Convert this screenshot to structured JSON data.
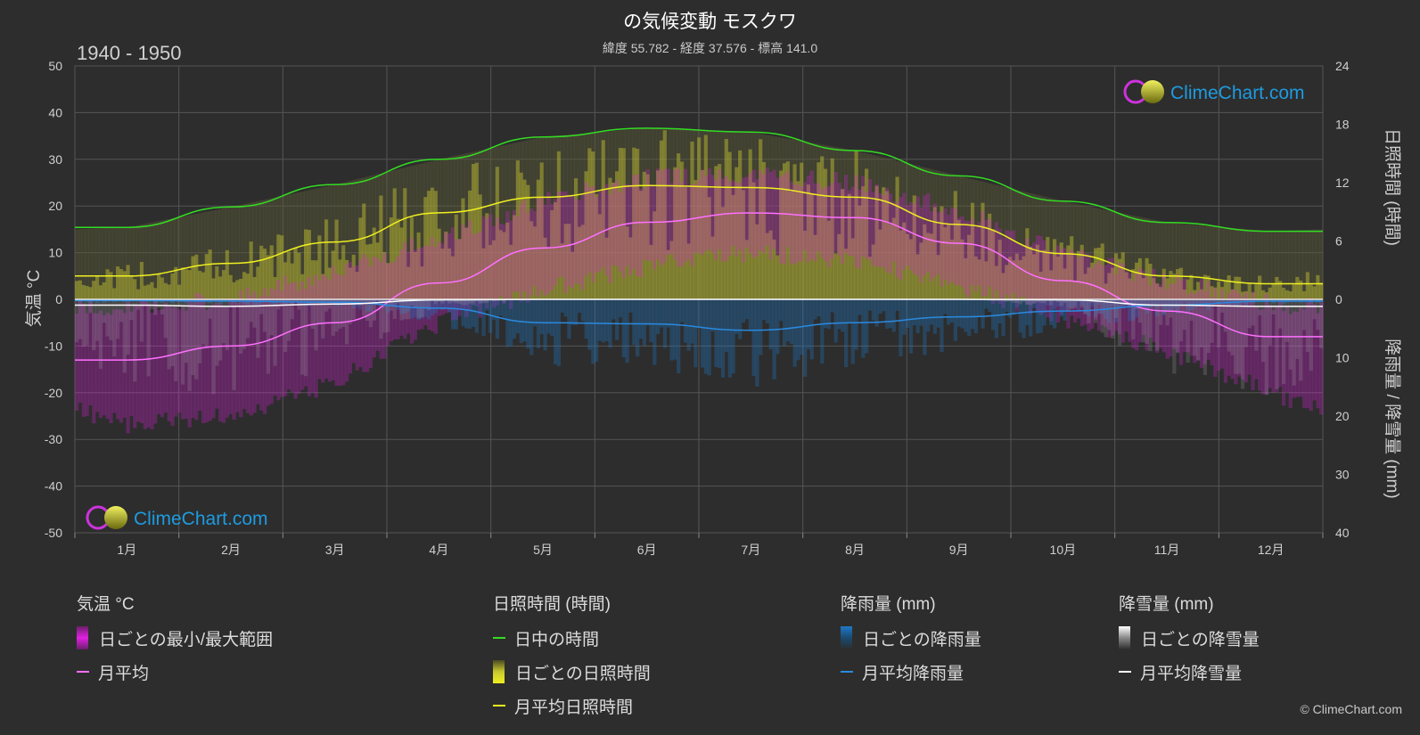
{
  "header": {
    "title": "の気候変動 モスクワ",
    "subtitle": "緯度 55.782 - 経度 37.576 - 標高 141.0",
    "period": "1940 - 1950",
    "copyright": "© ClimeChart.com",
    "watermark": "ClimeChart.com"
  },
  "axes": {
    "left_label": "気温 °C",
    "right_top_label": "日照時間 (時間)",
    "right_bottom_label": "降雨量 / 降雪量 (mm)"
  },
  "legend": {
    "temperature": {
      "heading": "気温 °C",
      "range": "日ごとの最小/最大範囲",
      "mean": "月平均"
    },
    "sunshine": {
      "heading": "日照時間 (時間)",
      "daylight": "日中の時間",
      "daily": "日ごとの日照時間",
      "mean": "月平均日照時間"
    },
    "rain": {
      "heading": "降雨量 (mm)",
      "daily": "日ごとの降雨量",
      "mean": "月平均降雨量"
    },
    "snow": {
      "heading": "降雪量 (mm)",
      "daily": "日ごとの降雪量",
      "mean": "月平均降雪量"
    }
  },
  "colors": {
    "background": "#2d2d2d",
    "temp_range": "#e020e0",
    "temp_mean": "#ff70ff",
    "daylight": "#33dd22",
    "sunshine": "#c8c830",
    "sunshine_mean": "#f0f020",
    "rain": "#1e78c8",
    "rain_mean": "#2a8ae0",
    "snow": "#aaaaaa",
    "snow_mean": "#ffffff",
    "logo_text": "#1e9be0"
  },
  "chart_data": {
    "type": "line",
    "categories": [
      "1月",
      "2月",
      "3月",
      "4月",
      "5月",
      "6月",
      "7月",
      "8月",
      "9月",
      "10月",
      "11月",
      "12月"
    ],
    "y_left": {
      "ticks": [
        50,
        40,
        30,
        20,
        10,
        0,
        -10,
        -20,
        -30,
        -40,
        -50
      ],
      "range": [
        -50,
        50
      ]
    },
    "y_right_top": {
      "ticks": [
        24,
        18,
        12,
        6,
        0
      ],
      "range": [
        0,
        24
      ]
    },
    "y_right_bottom": {
      "ticks": [
        10,
        20,
        30,
        40
      ],
      "range": [
        0,
        40
      ]
    },
    "grid": true,
    "series": [
      {
        "name": "日中の時間",
        "axis": "right_top",
        "values": [
          7.4,
          9.5,
          11.8,
          14.4,
          16.7,
          17.6,
          17.2,
          15.3,
          12.7,
          10.1,
          7.9,
          7.0
        ]
      },
      {
        "name": "月平均日照時間",
        "axis": "right_top",
        "values": [
          2.4,
          3.7,
          5.9,
          8.9,
          10.5,
          11.7,
          11.5,
          10.5,
          7.7,
          4.7,
          2.4,
          1.6
        ]
      },
      {
        "name": "月平均",
        "axis": "left",
        "values": [
          -13.0,
          -10.0,
          -5.0,
          3.5,
          11.0,
          16.5,
          18.5,
          17.5,
          12.0,
          4.0,
          -2.5,
          -8.0
        ]
      },
      {
        "name": "月平均降雨量",
        "axis": "right_bottom",
        "values": [
          0.2,
          0.3,
          0.5,
          1.5,
          4.0,
          4.2,
          5.3,
          4.0,
          3.0,
          2.0,
          1.0,
          0.3
        ]
      },
      {
        "name": "月平均降雪量",
        "axis": "right_bottom",
        "values": [
          1.0,
          1.2,
          0.8,
          0.1,
          0.0,
          0.0,
          0.0,
          0.0,
          0.0,
          0.1,
          1.0,
          1.2
        ]
      }
    ],
    "daily_range": {
      "name": "日ごとの最小/最大範囲",
      "min": [
        -25,
        -23,
        -16,
        -3,
        4,
        9,
        12,
        10,
        5,
        -2,
        -9,
        -18
      ],
      "max": [
        -4,
        -2,
        4,
        11,
        19,
        24,
        25,
        23,
        17,
        8,
        2,
        -3
      ]
    }
  }
}
